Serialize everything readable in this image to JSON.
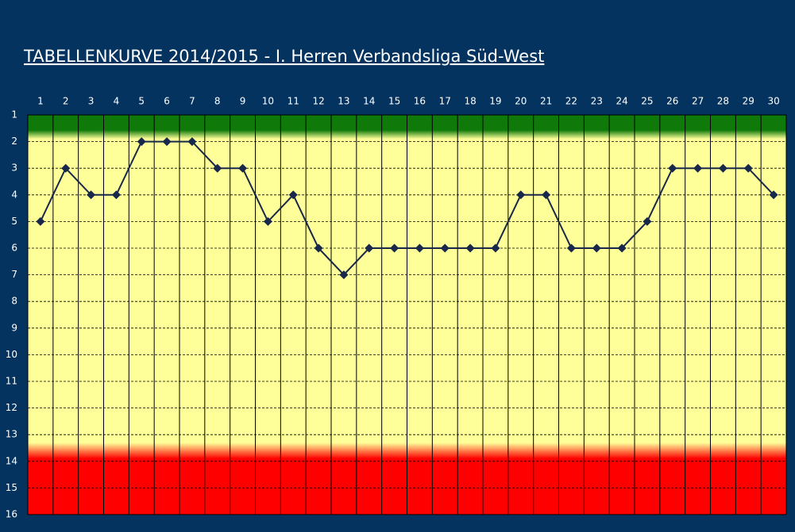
{
  "chart_data": {
    "type": "line",
    "title": "TABELLENKURVE 2014/2015 - I. Herren Verbandsliga Süd-West",
    "x": [
      1,
      2,
      3,
      4,
      5,
      6,
      7,
      8,
      9,
      10,
      11,
      12,
      13,
      14,
      15,
      16,
      17,
      18,
      19,
      20,
      21,
      22,
      23,
      24,
      25,
      26,
      27,
      28,
      29,
      30
    ],
    "xlim": [
      0.5,
      30.5
    ],
    "xticks": [
      1,
      2,
      3,
      4,
      5,
      6,
      7,
      8,
      9,
      10,
      11,
      12,
      13,
      14,
      15,
      16,
      17,
      18,
      19,
      20,
      21,
      22,
      23,
      24,
      25,
      26,
      27,
      28,
      29,
      30
    ],
    "series": [
      {
        "color": "#17284a",
        "values": [
          5,
          3,
          4,
          4,
          2,
          2,
          2,
          3,
          3,
          5,
          4,
          6,
          7,
          6,
          6,
          6,
          6,
          6,
          6,
          4,
          4,
          6,
          6,
          6,
          5,
          3,
          3,
          3,
          3,
          4
        ]
      }
    ],
    "ylim": [
      16,
      1
    ],
    "yticks": [
      1,
      2,
      3,
      4,
      5,
      6,
      7,
      8,
      9,
      10,
      11,
      12,
      13,
      14,
      15,
      16
    ],
    "grid": true
  }
}
